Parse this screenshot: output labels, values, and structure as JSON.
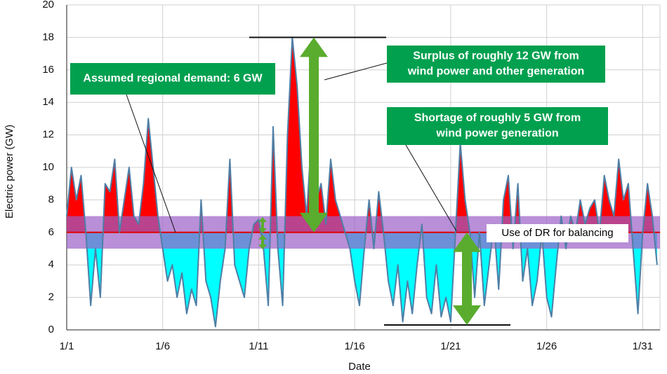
{
  "chart_data": {
    "type": "line",
    "x_label": "Date",
    "y_label": "Electric power (GW)",
    "x": [
      1,
      1.25,
      1.5,
      1.75,
      2,
      2.25,
      2.5,
      2.75,
      3,
      3.25,
      3.5,
      3.75,
      4,
      4.25,
      4.5,
      4.75,
      5,
      5.25,
      5.5,
      5.75,
      6,
      6.25,
      6.5,
      6.75,
      7,
      7.25,
      7.5,
      7.75,
      8,
      8.25,
      8.5,
      8.75,
      9,
      9.25,
      9.5,
      9.75,
      10,
      10.25,
      10.5,
      10.75,
      11,
      11.25,
      11.5,
      11.75,
      12,
      12.25,
      12.5,
      12.75,
      13,
      13.25,
      13.5,
      13.75,
      14,
      14.25,
      14.5,
      14.75,
      15,
      15.25,
      15.5,
      15.75,
      16,
      16.25,
      16.5,
      16.75,
      17,
      17.25,
      17.5,
      17.75,
      18,
      18.25,
      18.5,
      18.75,
      19,
      19.25,
      19.5,
      19.75,
      20,
      20.25,
      20.5,
      20.75,
      21,
      21.25,
      21.5,
      21.75,
      22,
      22.25,
      22.5,
      22.75,
      23,
      23.25,
      23.5,
      23.75,
      24,
      24.25,
      24.5,
      24.75,
      25,
      25.25,
      25.5,
      25.75,
      26,
      26.25,
      26.5,
      26.75,
      27,
      27.25,
      27.5,
      27.75,
      28,
      28.25,
      28.5,
      28.75,
      29,
      29.25,
      29.5,
      29.75,
      30,
      30.25,
      30.5,
      30.75,
      31,
      31.25,
      31.5,
      31.75
    ],
    "series": [
      {
        "color": "#4f7fa6",
        "surplus_color": "#ff0000",
        "shortage_color": "#00ffff",
        "values": [
          7,
          10,
          8,
          9.5,
          6,
          1.5,
          5,
          2,
          9,
          8.5,
          10.5,
          6,
          8,
          10,
          7,
          6.5,
          9,
          13,
          10,
          7,
          5,
          3,
          4,
          2,
          3.5,
          1,
          2.5,
          1.5,
          8,
          3,
          2,
          0.2,
          3,
          5,
          10.5,
          4,
          3,
          2,
          5,
          6.5,
          6.8,
          5,
          1.5,
          12.5,
          5,
          1.5,
          12,
          18,
          15,
          10,
          7,
          12,
          8,
          9,
          6.5,
          10.5,
          8,
          7,
          6,
          5,
          3,
          1.5,
          5,
          8,
          5,
          8.5,
          6,
          3,
          1.5,
          4,
          0.5,
          3,
          1,
          4,
          6.5,
          2,
          1,
          4,
          0.8,
          2,
          0.5,
          6,
          11.5,
          8,
          6,
          2,
          6,
          1.5,
          4,
          6.5,
          2.5,
          8,
          9.5,
          5,
          9,
          3,
          5,
          1.5,
          3,
          6,
          2,
          0.8,
          4,
          7,
          5,
          7,
          6,
          8,
          6.5,
          7.5,
          8,
          6,
          9.5,
          8,
          7,
          10.5,
          8,
          9,
          5,
          1,
          6,
          9,
          7,
          4
        ]
      }
    ],
    "demand": 6,
    "demand_color": "#e00000",
    "dr_band": [
      5,
      7
    ],
    "dr_color": "#9b5fc8",
    "surplus_range": [
      6,
      18
    ],
    "shortage_range": [
      0.3,
      6
    ],
    "arrow_color": "#5aac2e",
    "box_color": "#00a04f",
    "annotations": {
      "demand": "Assumed regional demand: 6 GW",
      "surplus": [
        "Surplus of roughly 12 GW from",
        "wind power and other generation"
      ],
      "shortage": [
        "Shortage of roughly 5 GW from",
        "wind power generation"
      ],
      "dr": "Use of DR for balancing"
    },
    "xlim": [
      1,
      31.9
    ],
    "ylim": [
      0,
      20
    ],
    "xticks": [
      {
        "value": 1,
        "label": "1/1"
      },
      {
        "value": 6,
        "label": "1/6"
      },
      {
        "value": 11,
        "label": "1/11"
      },
      {
        "value": 16,
        "label": "1/16"
      },
      {
        "value": 21,
        "label": "1/21"
      },
      {
        "value": 26,
        "label": "1/26"
      },
      {
        "value": 31,
        "label": "1/31"
      }
    ],
    "yticks": [
      0,
      2,
      4,
      6,
      8,
      10,
      12,
      14,
      16,
      18,
      20
    ],
    "grid": true
  }
}
